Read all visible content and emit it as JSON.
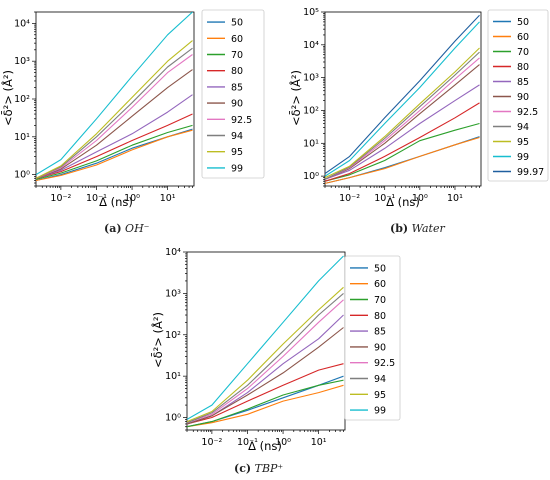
{
  "chart_data": [
    {
      "type": "line",
      "xlabel": "Δ (ns)",
      "ylabel": "<δ̄²> (Å²)",
      "xscale": "log",
      "yscale": "log",
      "xlim": [
        0.002,
        55
      ],
      "ylim": [
        0.5,
        20000
      ],
      "xticks": [
        "10⁻²",
        "10⁻¹",
        "10⁰",
        "10¹"
      ],
      "yticks": [
        "10⁰",
        "10¹",
        "10²",
        "10³",
        "10⁴"
      ],
      "grid": false,
      "legend_position": "right",
      "caption_tag": "(a)",
      "caption_text": "OH⁻",
      "series": [
        {
          "name": "50",
          "color": "#1f77b4",
          "values": [
            [
              0.002,
              0.7
            ],
            [
              0.01,
              1.0
            ],
            [
              0.1,
              2.0
            ],
            [
              1,
              5.0
            ],
            [
              10,
              10
            ],
            [
              50,
              16
            ]
          ]
        },
        {
          "name": "60",
          "color": "#ff7f0e",
          "values": [
            [
              0.002,
              0.7
            ],
            [
              0.01,
              0.95
            ],
            [
              0.1,
              1.8
            ],
            [
              1,
              4.5
            ],
            [
              10,
              10
            ],
            [
              50,
              15
            ]
          ]
        },
        {
          "name": "70",
          "color": "#2ca02c",
          "values": [
            [
              0.002,
              0.75
            ],
            [
              0.01,
              1.1
            ],
            [
              0.1,
              2.3
            ],
            [
              1,
              6
            ],
            [
              10,
              13
            ],
            [
              50,
              20
            ]
          ]
        },
        {
          "name": "80",
          "color": "#d62728",
          "values": [
            [
              0.002,
              0.8
            ],
            [
              0.01,
              1.2
            ],
            [
              0.1,
              3
            ],
            [
              1,
              8
            ],
            [
              10,
              20
            ],
            [
              50,
              40
            ]
          ]
        },
        {
          "name": "85",
          "color": "#9467bd",
          "values": [
            [
              0.002,
              0.8
            ],
            [
              0.01,
              1.3
            ],
            [
              0.1,
              4
            ],
            [
              1,
              12
            ],
            [
              10,
              45
            ],
            [
              50,
              130
            ]
          ]
        },
        {
          "name": "90",
          "color": "#8c564b",
          "values": [
            [
              0.002,
              0.8
            ],
            [
              0.01,
              1.4
            ],
            [
              0.1,
              6
            ],
            [
              1,
              35
            ],
            [
              10,
              200
            ],
            [
              50,
              600
            ]
          ]
        },
        {
          "name": "92.5",
          "color": "#e377c2",
          "values": [
            [
              0.002,
              0.8
            ],
            [
              0.01,
              1.5
            ],
            [
              0.1,
              8
            ],
            [
              1,
              60
            ],
            [
              10,
              500
            ],
            [
              50,
              1500
            ]
          ]
        },
        {
          "name": "94",
          "color": "#7f7f7f",
          "values": [
            [
              0.002,
              0.8
            ],
            [
              0.01,
              1.6
            ],
            [
              0.1,
              10
            ],
            [
              1,
              80
            ],
            [
              10,
              700
            ],
            [
              50,
              2200
            ]
          ]
        },
        {
          "name": "95",
          "color": "#bcbd22",
          "values": [
            [
              0.002,
              0.8
            ],
            [
              0.01,
              1.7
            ],
            [
              0.1,
              12
            ],
            [
              1,
              110
            ],
            [
              10,
              1000
            ],
            [
              50,
              3500
            ]
          ]
        },
        {
          "name": "99",
          "color": "#17becf",
          "values": [
            [
              0.002,
              1.0
            ],
            [
              0.01,
              2.5
            ],
            [
              0.1,
              30
            ],
            [
              1,
              400
            ],
            [
              10,
              5000
            ],
            [
              50,
              20000
            ]
          ]
        }
      ]
    },
    {
      "type": "line",
      "xlabel": "Δ (ns)",
      "ylabel": "<δ̄²> (Å²)",
      "xscale": "log",
      "yscale": "log",
      "xlim": [
        0.002,
        55
      ],
      "ylim": [
        0.5,
        100000
      ],
      "xticks": [
        "10⁻²",
        "10⁻¹",
        "10⁰",
        "10¹"
      ],
      "yticks": [
        "10⁰",
        "10¹",
        "10²",
        "10³",
        "10⁴",
        "10⁵"
      ],
      "grid": false,
      "legend_position": "right",
      "caption_tag": "(b)",
      "caption_text": "Water",
      "series": [
        {
          "name": "50",
          "color": "#1f77b4",
          "values": [
            [
              0.002,
              0.6
            ],
            [
              0.01,
              0.9
            ],
            [
              0.1,
              1.8
            ],
            [
              1,
              4
            ],
            [
              10,
              9
            ],
            [
              50,
              16
            ]
          ]
        },
        {
          "name": "60",
          "color": "#ff7f0e",
          "values": [
            [
              0.002,
              0.6
            ],
            [
              0.01,
              0.9
            ],
            [
              0.1,
              1.7
            ],
            [
              1,
              4
            ],
            [
              10,
              9
            ],
            [
              50,
              15
            ]
          ]
        },
        {
          "name": "70",
          "color": "#2ca02c",
          "values": [
            [
              0.002,
              0.7
            ],
            [
              0.01,
              1.1
            ],
            [
              0.1,
              3
            ],
            [
              1,
              12
            ],
            [
              10,
              25
            ],
            [
              50,
              40
            ]
          ]
        },
        {
          "name": "80",
          "color": "#d62728",
          "values": [
            [
              0.002,
              0.7
            ],
            [
              0.01,
              1.2
            ],
            [
              0.1,
              4
            ],
            [
              1,
              15
            ],
            [
              10,
              60
            ],
            [
              50,
              170
            ]
          ]
        },
        {
          "name": "85",
          "color": "#9467bd",
          "values": [
            [
              0.002,
              0.8
            ],
            [
              0.01,
              1.5
            ],
            [
              0.1,
              7
            ],
            [
              1,
              40
            ],
            [
              10,
              200
            ],
            [
              50,
              600
            ]
          ]
        },
        {
          "name": "90",
          "color": "#8c564b",
          "values": [
            [
              0.002,
              0.8
            ],
            [
              0.01,
              1.7
            ],
            [
              0.1,
              10
            ],
            [
              1,
              80
            ],
            [
              10,
              600
            ],
            [
              50,
              2500
            ]
          ]
        },
        {
          "name": "92.5",
          "color": "#e377c2",
          "values": [
            [
              0.002,
              0.8
            ],
            [
              0.01,
              1.8
            ],
            [
              0.1,
              12
            ],
            [
              1,
              100
            ],
            [
              10,
              900
            ],
            [
              50,
              4000
            ]
          ]
        },
        {
          "name": "94",
          "color": "#7f7f7f",
          "values": [
            [
              0.002,
              0.8
            ],
            [
              0.01,
              1.9
            ],
            [
              0.1,
              14
            ],
            [
              1,
              130
            ],
            [
              10,
              1200
            ],
            [
              50,
              6000
            ]
          ]
        },
        {
          "name": "95",
          "color": "#bcbd22",
          "values": [
            [
              0.002,
              0.9
            ],
            [
              0.01,
              2.0
            ],
            [
              0.1,
              16
            ],
            [
              1,
              160
            ],
            [
              10,
              1500
            ],
            [
              50,
              8000
            ]
          ]
        },
        {
          "name": "99",
          "color": "#17becf",
          "values": [
            [
              0.002,
              1.0
            ],
            [
              0.01,
              3.0
            ],
            [
              0.1,
              40
            ],
            [
              1,
              500
            ],
            [
              10,
              8000
            ],
            [
              50,
              50000
            ]
          ]
        },
        {
          "name": "99.97",
          "color": "#1f5f9f",
          "values": [
            [
              0.002,
              1.2
            ],
            [
              0.01,
              4.0
            ],
            [
              0.1,
              60
            ],
            [
              1,
              800
            ],
            [
              10,
              13000
            ],
            [
              50,
              80000
            ]
          ]
        }
      ]
    },
    {
      "type": "line",
      "xlabel": "Δ (ns)",
      "ylabel": "<δ̄²> (Å²)",
      "xscale": "log",
      "yscale": "log",
      "xlim": [
        0.002,
        55
      ],
      "ylim": [
        0.5,
        10000
      ],
      "xticks": [
        "10⁻²",
        "10⁻¹",
        "10⁰",
        "10¹"
      ],
      "yticks": [
        "10⁰",
        "10¹",
        "10²",
        "10³",
        "10⁴"
      ],
      "grid": false,
      "legend_position": "right",
      "caption_tag": "(c)",
      "caption_text": "TBP⁺",
      "series": [
        {
          "name": "50",
          "color": "#1f77b4",
          "values": [
            [
              0.002,
              0.6
            ],
            [
              0.01,
              0.8
            ],
            [
              0.1,
              1.5
            ],
            [
              1,
              3
            ],
            [
              10,
              6
            ],
            [
              50,
              10
            ]
          ]
        },
        {
          "name": "60",
          "color": "#ff7f0e",
          "values": [
            [
              0.002,
              0.6
            ],
            [
              0.01,
              0.75
            ],
            [
              0.1,
              1.2
            ],
            [
              1,
              2.5
            ],
            [
              10,
              4
            ],
            [
              50,
              6
            ]
          ]
        },
        {
          "name": "70",
          "color": "#2ca02c",
          "values": [
            [
              0.002,
              0.6
            ],
            [
              0.01,
              0.8
            ],
            [
              0.1,
              1.6
            ],
            [
              1,
              3.5
            ],
            [
              10,
              6
            ],
            [
              50,
              8
            ]
          ]
        },
        {
          "name": "80",
          "color": "#d62728",
          "values": [
            [
              0.002,
              0.7
            ],
            [
              0.01,
              1.0
            ],
            [
              0.1,
              2.5
            ],
            [
              1,
              6
            ],
            [
              10,
              14
            ],
            [
              50,
              20
            ]
          ]
        },
        {
          "name": "85",
          "color": "#9467bd",
          "values": [
            [
              0.002,
              0.7
            ],
            [
              0.01,
              1.1
            ],
            [
              0.1,
              4
            ],
            [
              1,
              20
            ],
            [
              10,
              80
            ],
            [
              50,
              300
            ]
          ]
        },
        {
          "name": "90",
          "color": "#8c564b",
          "values": [
            [
              0.002,
              0.7
            ],
            [
              0.01,
              1.1
            ],
            [
              0.1,
              3.5
            ],
            [
              1,
              12
            ],
            [
              10,
              50
            ],
            [
              50,
              150
            ]
          ]
        },
        {
          "name": "92.5",
          "color": "#e377c2",
          "values": [
            [
              0.002,
              0.75
            ],
            [
              0.01,
              1.2
            ],
            [
              0.1,
              5
            ],
            [
              1,
              30
            ],
            [
              10,
              200
            ],
            [
              50,
              700
            ]
          ]
        },
        {
          "name": "94",
          "color": "#7f7f7f",
          "values": [
            [
              0.002,
              0.75
            ],
            [
              0.01,
              1.3
            ],
            [
              0.1,
              6
            ],
            [
              1,
              40
            ],
            [
              10,
              300
            ],
            [
              50,
              1000
            ]
          ]
        },
        {
          "name": "95",
          "color": "#bcbd22",
          "values": [
            [
              0.002,
              0.8
            ],
            [
              0.01,
              1.4
            ],
            [
              0.1,
              8
            ],
            [
              1,
              60
            ],
            [
              10,
              400
            ],
            [
              50,
              1400
            ]
          ]
        },
        {
          "name": "99",
          "color": "#17becf",
          "values": [
            [
              0.002,
              0.9
            ],
            [
              0.01,
              2.0
            ],
            [
              0.1,
              20
            ],
            [
              1,
              200
            ],
            [
              10,
              2000
            ],
            [
              50,
              8000
            ]
          ]
        }
      ]
    }
  ]
}
